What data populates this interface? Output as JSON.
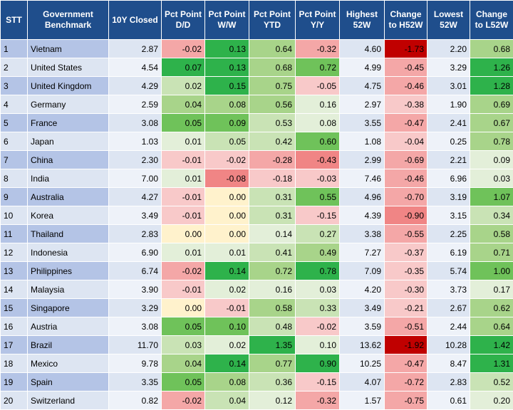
{
  "table": {
    "headers": [
      "STT",
      "Government Benchmark",
      "10Y Closed",
      "Pct Point D/D",
      "Pct Point W/W",
      "Pct Point YTD",
      "Pct Point Y/Y",
      "Highest 52W",
      "Change to H52W",
      "Lowest 52W",
      "Change to L52W"
    ],
    "colors": {
      "header_bg": "#1f4e8c",
      "header_text": "#ffffff",
      "negative_scale": [
        "#f8c9c9",
        "#f4a7a7",
        "#f08585",
        "#e84848",
        "#c00000"
      ],
      "positive_scale": [
        "#e3efd9",
        "#c9e3b5",
        "#a8d48a",
        "#6fc25a",
        "#2eb24b"
      ],
      "zero": "#fff2cc"
    },
    "rows": [
      {
        "stt": "1",
        "name": "Vietnam",
        "close": "2.87",
        "dd": "-0.02",
        "ww": "0.13",
        "ytd": "0.64",
        "yy": "-0.32",
        "high": "4.60",
        "chg_high": "-1.73",
        "low": "2.20",
        "chg_low": "0.68"
      },
      {
        "stt": "2",
        "name": "United States",
        "close": "4.54",
        "dd": "0.07",
        "ww": "0.13",
        "ytd": "0.68",
        "yy": "0.72",
        "high": "4.99",
        "chg_high": "-0.45",
        "low": "3.29",
        "chg_low": "1.26"
      },
      {
        "stt": "3",
        "name": "United Kingdom",
        "close": "4.29",
        "dd": "0.02",
        "ww": "0.15",
        "ytd": "0.75",
        "yy": "-0.05",
        "high": "4.75",
        "chg_high": "-0.46",
        "low": "3.01",
        "chg_low": "1.28"
      },
      {
        "stt": "4",
        "name": "Germany",
        "close": "2.59",
        "dd": "0.04",
        "ww": "0.08",
        "ytd": "0.56",
        "yy": "0.16",
        "high": "2.97",
        "chg_high": "-0.38",
        "low": "1.90",
        "chg_low": "0.69"
      },
      {
        "stt": "5",
        "name": "France",
        "close": "3.08",
        "dd": "0.05",
        "ww": "0.09",
        "ytd": "0.53",
        "yy": "0.08",
        "high": "3.55",
        "chg_high": "-0.47",
        "low": "2.41",
        "chg_low": "0.67"
      },
      {
        "stt": "6",
        "name": "Japan",
        "close": "1.03",
        "dd": "0.01",
        "ww": "0.05",
        "ytd": "0.42",
        "yy": "0.60",
        "high": "1.08",
        "chg_high": "-0.04",
        "low": "0.25",
        "chg_low": "0.78"
      },
      {
        "stt": "7",
        "name": "China",
        "close": "2.30",
        "dd": "-0.01",
        "ww": "-0.02",
        "ytd": "-0.28",
        "yy": "-0.43",
        "high": "2.99",
        "chg_high": "-0.69",
        "low": "2.21",
        "chg_low": "0.09"
      },
      {
        "stt": "8",
        "name": "India",
        "close": "7.00",
        "dd": "0.01",
        "ww": "-0.08",
        "ytd": "-0.18",
        "yy": "-0.03",
        "high": "7.46",
        "chg_high": "-0.46",
        "low": "6.96",
        "chg_low": "0.03"
      },
      {
        "stt": "9",
        "name": "Australia",
        "close": "4.27",
        "dd": "-0.01",
        "ww": "0.00",
        "ytd": "0.31",
        "yy": "0.55",
        "high": "4.96",
        "chg_high": "-0.70",
        "low": "3.19",
        "chg_low": "1.07"
      },
      {
        "stt": "10",
        "name": "Korea",
        "close": "3.49",
        "dd": "-0.01",
        "ww": "0.00",
        "ytd": "0.31",
        "yy": "-0.15",
        "high": "4.39",
        "chg_high": "-0.90",
        "low": "3.15",
        "chg_low": "0.34"
      },
      {
        "stt": "11",
        "name": "Thailand",
        "close": "2.83",
        "dd": "0.00",
        "ww": "0.00",
        "ytd": "0.14",
        "yy": "0.27",
        "high": "3.38",
        "chg_high": "-0.55",
        "low": "2.25",
        "chg_low": "0.58"
      },
      {
        "stt": "12",
        "name": "Indonesia",
        "close": "6.90",
        "dd": "0.01",
        "ww": "0.01",
        "ytd": "0.41",
        "yy": "0.49",
        "high": "7.27",
        "chg_high": "-0.37",
        "low": "6.19",
        "chg_low": "0.71"
      },
      {
        "stt": "13",
        "name": "Philippines",
        "close": "6.74",
        "dd": "-0.02",
        "ww": "0.14",
        "ytd": "0.72",
        "yy": "0.78",
        "high": "7.09",
        "chg_high": "-0.35",
        "low": "5.74",
        "chg_low": "1.00"
      },
      {
        "stt": "14",
        "name": "Malaysia",
        "close": "3.90",
        "dd": "-0.01",
        "ww": "0.02",
        "ytd": "0.16",
        "yy": "0.03",
        "high": "4.20",
        "chg_high": "-0.30",
        "low": "3.73",
        "chg_low": "0.17"
      },
      {
        "stt": "15",
        "name": "Singapore",
        "close": "3.29",
        "dd": "0.00",
        "ww": "-0.01",
        "ytd": "0.58",
        "yy": "0.33",
        "high": "3.49",
        "chg_high": "-0.21",
        "low": "2.67",
        "chg_low": "0.62"
      },
      {
        "stt": "16",
        "name": "Austria",
        "close": "3.08",
        "dd": "0.05",
        "ww": "0.10",
        "ytd": "0.48",
        "yy": "-0.02",
        "high": "3.59",
        "chg_high": "-0.51",
        "low": "2.44",
        "chg_low": "0.64"
      },
      {
        "stt": "17",
        "name": "Brazil",
        "close": "11.70",
        "dd": "0.03",
        "ww": "0.02",
        "ytd": "1.35",
        "yy": "0.10",
        "high": "13.62",
        "chg_high": "-1.92",
        "low": "10.28",
        "chg_low": "1.42"
      },
      {
        "stt": "18",
        "name": "Mexico",
        "close": "9.78",
        "dd": "0.04",
        "ww": "0.14",
        "ytd": "0.77",
        "yy": "0.90",
        "high": "10.25",
        "chg_high": "-0.47",
        "low": "8.47",
        "chg_low": "1.31"
      },
      {
        "stt": "19",
        "name": "Spain",
        "close": "3.35",
        "dd": "0.05",
        "ww": "0.08",
        "ytd": "0.36",
        "yy": "-0.15",
        "high": "4.07",
        "chg_high": "-0.72",
        "low": "2.83",
        "chg_low": "0.52"
      },
      {
        "stt": "20",
        "name": "Switzerland",
        "close": "0.82",
        "dd": "-0.02",
        "ww": "0.04",
        "ytd": "0.12",
        "yy": "-0.32",
        "high": "1.57",
        "chg_high": "-0.75",
        "low": "0.61",
        "chg_low": "0.20"
      }
    ]
  }
}
